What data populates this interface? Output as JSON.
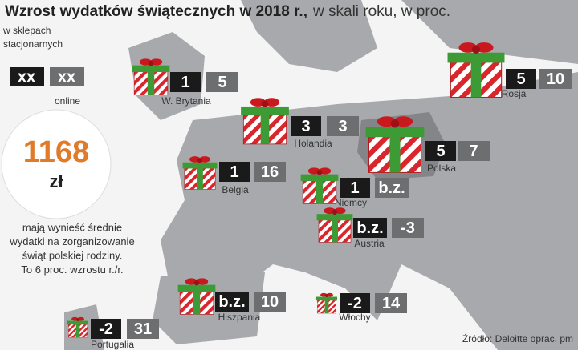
{
  "header": {
    "title": "Wzrost wydatków świątecznych w 2018 r.,",
    "subtitle": "w skali roku, w proc."
  },
  "legend": {
    "store_label": "w sklepach stacjonarnych",
    "store_sample": "xx",
    "online_sample": "xx",
    "online_label": "online"
  },
  "highlight": {
    "amount": "1168",
    "unit": "zł",
    "description": [
      "mają wynieść średnie",
      "wydatki na zorganizowanie",
      "świąt polskiej rodziny.",
      "To 6 proc. wzrostu r./r."
    ]
  },
  "countries": [
    {
      "name": "W. Brytania",
      "store": 1,
      "online": 5
    },
    {
      "name": "Holandia",
      "store": 3,
      "online": 3
    },
    {
      "name": "Rosja",
      "store": 5,
      "online": 10
    },
    {
      "name": "Polska",
      "store": 5,
      "online": 7
    },
    {
      "name": "Belgia",
      "store": 1,
      "online": 16
    },
    {
      "name": "Niemcy",
      "store": 1,
      "online": "b.z."
    },
    {
      "name": "Austria",
      "store": "b.z.",
      "online": -3
    },
    {
      "name": "Hiszpania",
      "store": "b.z.",
      "online": 10
    },
    {
      "name": "Włochy",
      "store": -2,
      "online": 14
    },
    {
      "name": "Portugalia",
      "store": -2,
      "online": 31
    }
  ],
  "source": "Źródło: Deloitte oprac. pm"
}
